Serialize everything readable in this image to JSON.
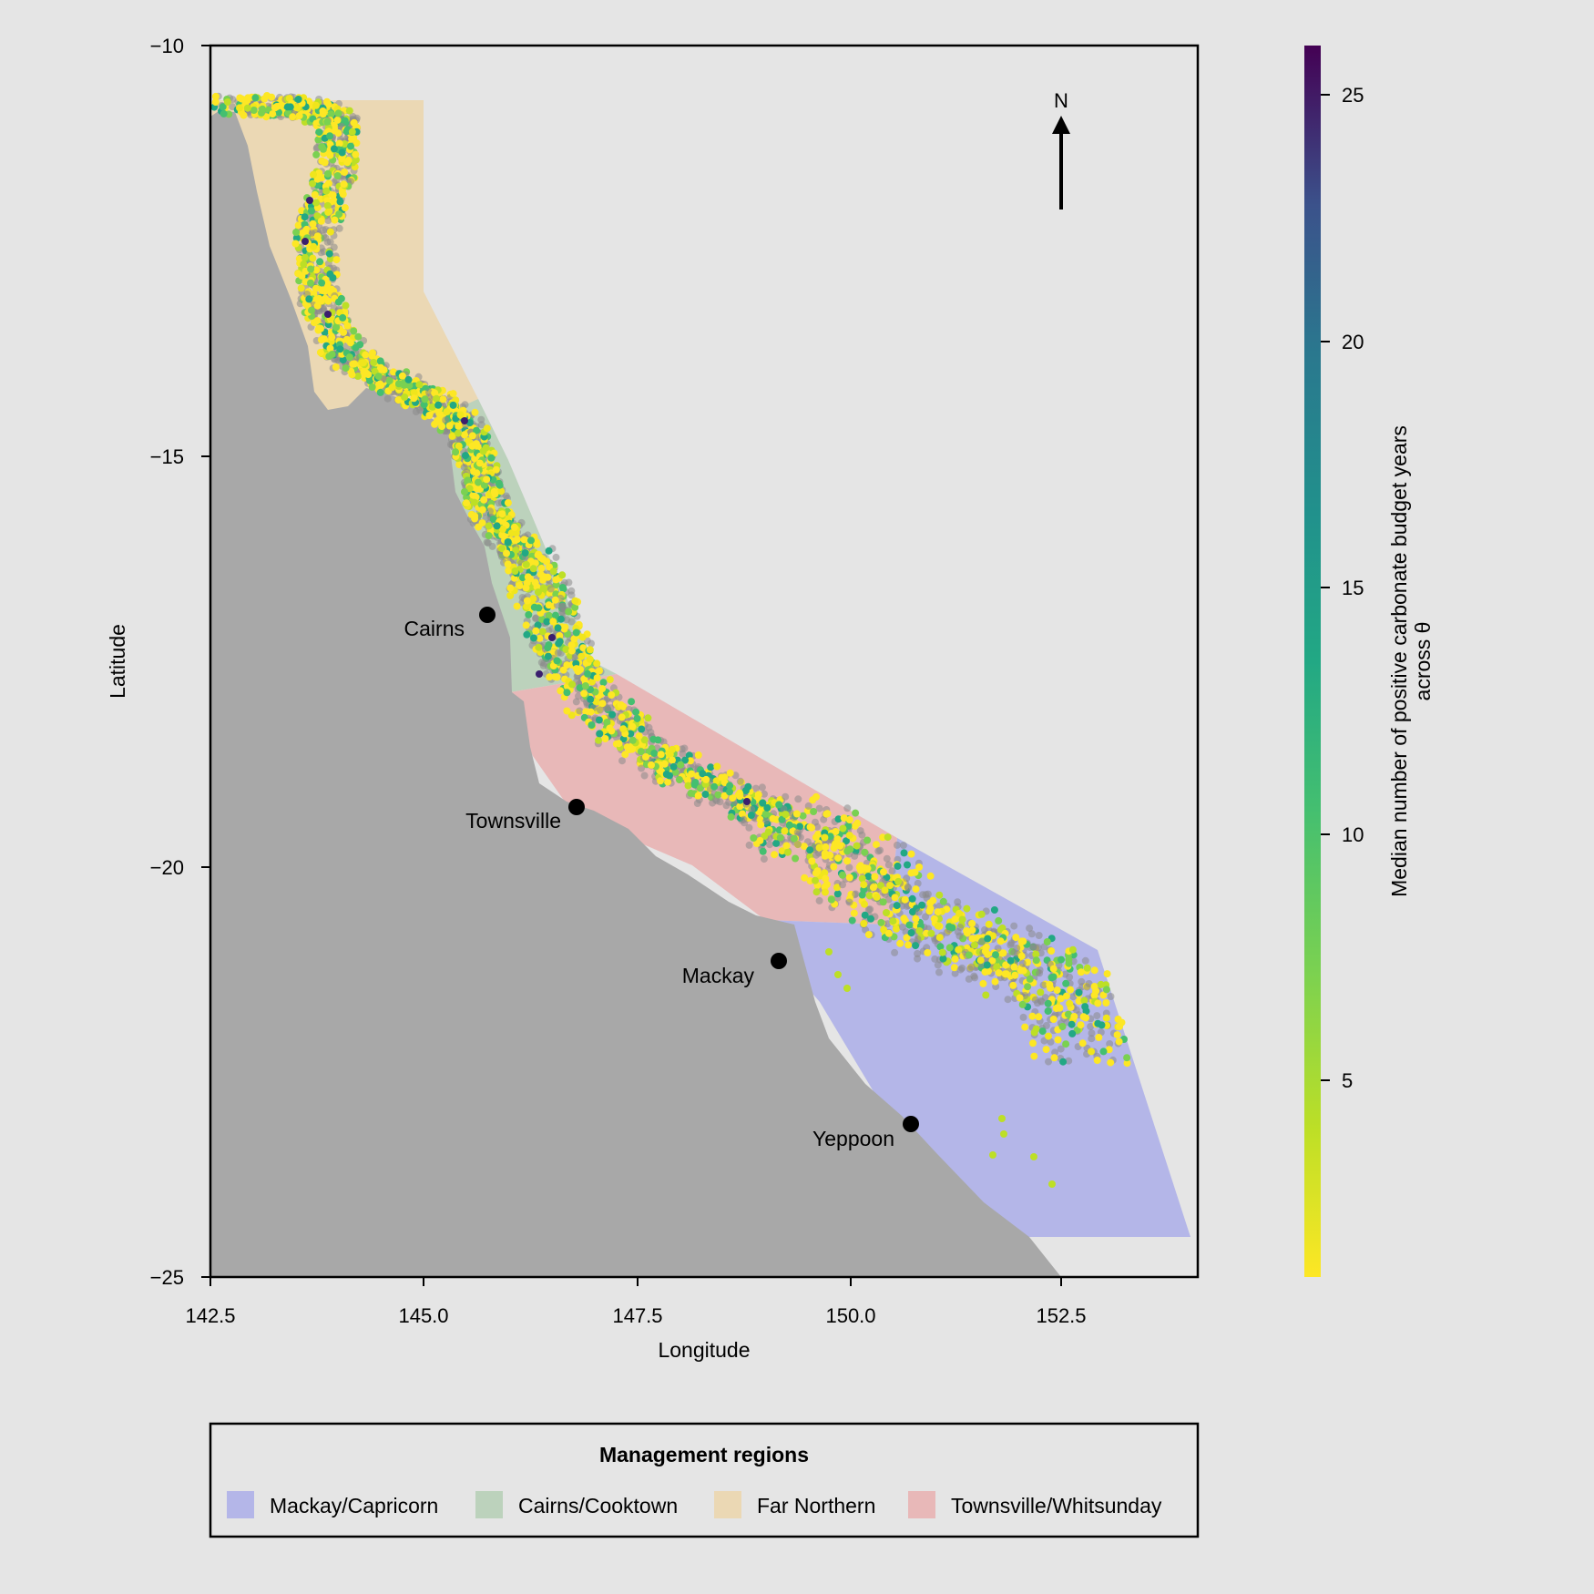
{
  "map": {
    "xlabel": "Longitude",
    "ylabel": "Latitude",
    "x_ticks": [
      "142.5",
      "145.0",
      "147.5",
      "150.0",
      "152.5"
    ],
    "y_ticks": [
      "−10",
      "−15",
      "−20",
      "−25"
    ],
    "extent": {
      "lon": [
        142.5,
        154.1
      ],
      "lat": [
        -25,
        -10
      ]
    },
    "north_label": "N",
    "land_color": "#a8a8a8",
    "background_color": "#e5e5e5",
    "cities": [
      {
        "name": "Cairns",
        "lon": 145.77,
        "lat": -16.92
      },
      {
        "name": "Townsville",
        "lon": 146.82,
        "lat": -19.26
      },
      {
        "name": "Mackay",
        "lon": 149.19,
        "lat": -21.14
      },
      {
        "name": "Yeppoon",
        "lon": 150.74,
        "lat": -23.13
      }
    ],
    "regions": [
      {
        "name": "Mackay/Capricorn",
        "color": "#b4b6e8"
      },
      {
        "name": "Cairns/Cooktown",
        "color": "#bcd2bc"
      },
      {
        "name": "Far Northern",
        "color": "#ebd8b4"
      },
      {
        "name": "Townsville/Whitsunday",
        "color": "#e8b8b8"
      }
    ],
    "colorbar": {
      "label_line1": "Median number of positive carbonate budget years",
      "label_line2": "across θ",
      "ticks": [
        "5",
        "10",
        "15",
        "20",
        "25"
      ],
      "range": [
        1,
        26
      ],
      "colormap": "viridis (reversed: yellow = low, purple = high)"
    },
    "legend": {
      "title": "Management regions"
    }
  }
}
